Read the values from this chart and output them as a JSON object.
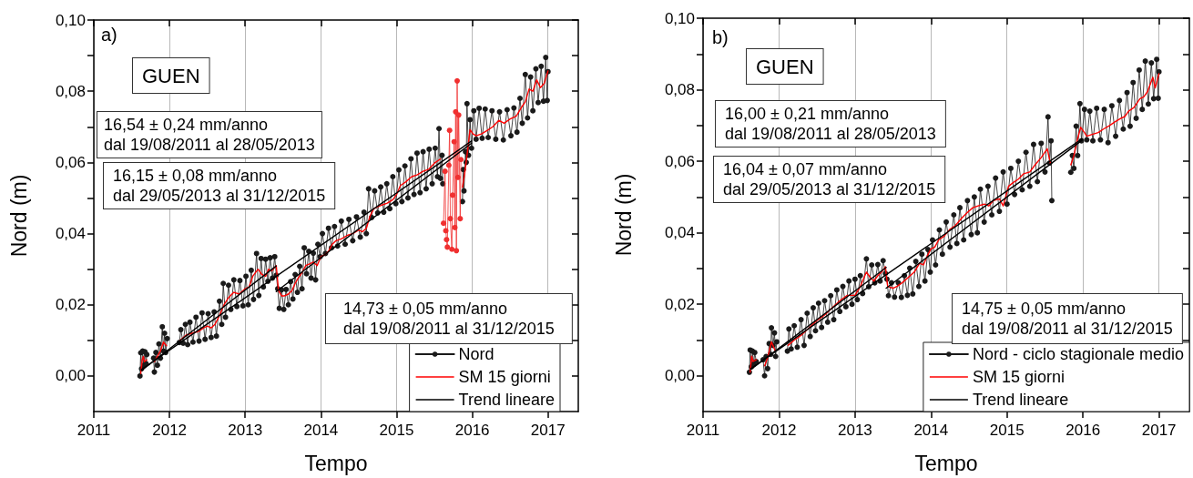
{
  "chart_data": [
    {
      "type": "line",
      "xlabel": "Tempo",
      "ylabel": "Nord (m)",
      "xlim": [
        2011,
        2017.4
      ],
      "xticks": [
        2011,
        2012,
        2013,
        2014,
        2015,
        2016,
        2017
      ],
      "ylim": [
        -0.01,
        0.1
      ],
      "yticks": [
        {
          "value": 0,
          "label": "0,00"
        },
        {
          "value": 0.01,
          "label": null
        },
        {
          "value": 0.02,
          "label": "0,02"
        },
        {
          "value": 0.03,
          "label": null
        },
        {
          "value": 0.04,
          "label": "0,04"
        },
        {
          "value": 0.05,
          "label": null
        },
        {
          "value": 0.06,
          "label": "0,06"
        },
        {
          "value": 0.07,
          "label": null
        },
        {
          "value": 0.08,
          "label": "0,08"
        },
        {
          "value": 0.09,
          "label": null
        },
        {
          "value": 0.1,
          "label": "0,10"
        }
      ],
      "grid": "x",
      "legend": "bottom right",
      "marker": "none",
      "annotations": [
        "a)",
        "GUEN",
        "16,54 ± 0,24 mm/anno\ndal 19/08/2011 al 28/05/2013",
        "16,15 ± 0,08 mm/anno\ndal 29/05/2013 al 31/12/2015",
        "14,73 ± 0,05 mm/anno\ndal 19/08/2011 al 31/12/2015"
      ],
      "series": [
        {
          "name": "Nord",
          "color": "#1a1a1a",
          "marker": "circle",
          "x": [
            2011.61,
            2011.62,
            2011.63,
            2011.645,
            2011.66,
            2011.675,
            2011.69,
            2011.7,
            2011.74,
            2011.79,
            2011.8,
            2011.82,
            2011.84,
            2011.86,
            2011.88,
            2011.905,
            2011.92,
            2011.935,
            2011.95,
            2011.97,
            2012.05,
            2012.13,
            2012.15,
            2012.18,
            2012.21,
            2012.24,
            2012.27,
            2012.31,
            2012.35,
            2012.39,
            2012.43,
            2012.47,
            2012.51,
            2012.55,
            2012.59,
            2012.62,
            2012.66,
            2012.69,
            2012.71,
            2012.74,
            2012.78,
            2012.81,
            2012.85,
            2012.89,
            2012.93,
            2012.97,
            2013.01,
            2013.04,
            2013.08,
            2013.11,
            2013.15,
            2013.18,
            2013.21,
            2013.24,
            2013.27,
            2013.3,
            2013.33,
            2013.36,
            2013.39,
            2013.41,
            2013.43,
            2013.45,
            2013.48,
            2013.51,
            2013.54,
            2013.57,
            2013.6,
            2013.63,
            2013.66,
            2013.69,
            2013.72,
            2013.75,
            2013.78,
            2013.81,
            2013.84,
            2013.87,
            2013.9,
            2013.93,
            2013.96,
            2013.99,
            2014.02,
            2014.06,
            2014.1,
            2014.14,
            2014.18,
            2014.22,
            2014.27,
            2014.32,
            2014.37,
            2014.42,
            2014.47,
            2014.52,
            2014.57,
            2014.6,
            2014.63,
            2014.67,
            2014.71,
            2014.75,
            2014.79,
            2014.83,
            2014.87,
            2014.91,
            2014.95,
            2014.99,
            2015.03,
            2015.07,
            2015.11,
            2015.15,
            2015.19,
            2015.23,
            2015.27,
            2015.31,
            2015.35,
            2015.39,
            2015.43,
            2015.47,
            2015.51,
            2015.54,
            2015.56,
            2015.58,
            2015.6,
            2015.61,
            2015.73,
            2015.87,
            2015.88,
            2015.89,
            2015.91,
            2015.92,
            2015.93,
            2015.95,
            2015.97,
            2015.99,
            2016.02,
            2016.05,
            2016.09,
            2016.13,
            2016.17,
            2016.21,
            2016.26,
            2016.31,
            2016.36,
            2016.41,
            2016.46,
            2016.51,
            2016.55,
            2016.59,
            2016.63,
            2016.66,
            2016.7,
            2016.73,
            2016.77,
            2016.8,
            2016.84,
            2016.87,
            2016.91,
            2016.94,
            2016.97,
            2016.99,
            2017
          ],
          "values": [
            0,
            0.0065,
            0.002,
            0.007,
            0.003,
            0.0068,
            0.0035,
            0.006,
            null,
            0.005,
            0.0011,
            0.0066,
            0.003,
            0.009,
            0.005,
            0.0138,
            0.007,
            0.012,
            0.0066,
            0.0105,
            null,
            0.0094,
            0.013,
            0.0092,
            0.0145,
            0.0088,
            0.0151,
            0.0095,
            0.0165,
            0.0098,
            0.0177,
            0.0103,
            0.0175,
            0.0108,
            0.018,
            0.0112,
            0.021,
            0.0145,
            0.026,
            0.0165,
            0.0255,
            0.0187,
            0.027,
            0.0195,
            0.0268,
            0.0197,
            0.028,
            0.02,
            0.0297,
            0.0215,
            0.0344,
            0.0226,
            0.033,
            0.025,
            0.0328,
            0.0266,
            0.0332,
            0.0275,
            0.0335,
            0.0283,
            0.0245,
            0.019,
            0.0242,
            0.0187,
            0.0243,
            0.02,
            0.0265,
            0.0216,
            0.0285,
            0.0235,
            0.0308,
            0.0245,
            0.036,
            0.0287,
            0.035,
            0.0275,
            0.0345,
            0.027,
            0.037,
            0.0335,
            0.04,
            0.0344,
            0.0415,
            0.036,
            0.042,
            0.0365,
            0.0435,
            0.037,
            0.044,
            0.038,
            0.0447,
            0.039,
            0.046,
            0.04,
            0.0526,
            0.0445,
            0.052,
            0.0458,
            0.0531,
            0.046,
            0.054,
            0.047,
            0.056,
            0.0484,
            0.0579,
            0.049,
            0.059,
            0.05,
            0.061,
            0.051,
            0.0626,
            0.0515,
            0.063,
            0.0526,
            0.0637,
            0.054,
            0.064,
            0.056,
            0.0695,
            0.0555,
            0.062,
            0.054,
            null,
            0.049,
            0.058,
            0.052,
            0.063,
            0.06,
            0.0765,
            0.062,
            0.072,
            0.064,
            0.0745,
            0.0665,
            0.0752,
            0.0668,
            0.075,
            0.067,
            0.0745,
            0.0665,
            0.0742,
            0.0663,
            0.0748,
            0.0675,
            0.0753,
            0.0685,
            0.078,
            0.071,
            0.0847,
            0.0725,
            0.084,
            0.0745,
            0.0863,
            0.0768,
            0.087,
            0.0772,
            0.0895,
            0.0774,
            0.0855
          ]
        },
        {
          "color": "#f03030",
          "marker": "circle",
          "x": [
            2015.62,
            2015.64,
            2015.65,
            2015.66,
            2015.67,
            2015.69,
            2015.7,
            2015.71,
            2015.73,
            2015.74,
            2015.76,
            2015.77,
            2015.78,
            2015.79,
            2015.8,
            2015.81,
            2015.82,
            2015.84,
            2015.85
          ],
          "values": [
            0.0429,
            0.0575,
            0.0408,
            0.0383,
            0.0362,
            0.0592,
            0.069,
            0.0442,
            0.0356,
            0.0508,
            0.0658,
            0.0417,
            0.0742,
            0.0352,
            0.0829,
            0.0558,
            0.0733,
            0.0442,
            0.0608
          ]
        },
        {
          "name": "SM 15 giorni",
          "color": "#ff0000",
          "x": [
            2011.62,
            2011.64,
            2011.655,
            2011.67,
            2011.7,
            2011.75,
            2011.8,
            2011.84,
            2011.88,
            2011.92,
            2011.96,
            2012.05,
            2012.14,
            2012.22,
            2012.3,
            2012.38,
            2012.45,
            2012.5,
            2012.55,
            2012.6,
            2012.65,
            2012.72,
            2012.78,
            2012.85,
            2012.92,
            2013,
            2013.05,
            2013.1,
            2013.17,
            2013.22,
            2013.27,
            2013.31,
            2013.35,
            2013.41,
            2013.44,
            2013.48,
            2013.52,
            2013.57,
            2013.62,
            2013.66,
            2013.7,
            2013.75,
            2013.8,
            2013.85,
            2013.9,
            2013.95,
            2014,
            2014.05,
            2014.1,
            2014.15,
            2014.2,
            2014.27,
            2014.35,
            2014.42,
            2014.5,
            2014.55,
            2014.6,
            2014.65,
            2014.7,
            2014.75,
            2014.8,
            2014.87,
            2014.95,
            2015,
            2015.05,
            2015.12,
            2015.2,
            2015.27,
            2015.35,
            2015.42,
            2015.5,
            2015.58,
            2015.7,
            2015.87,
            2015.9,
            2015.93,
            2015.97,
            2016.01,
            2016.05,
            2016.12,
            2016.2,
            2016.27,
            2016.35,
            2016.42,
            2016.5,
            2016.58,
            2016.65,
            2016.7,
            2016.75,
            2016.8,
            2016.85,
            2016.9,
            2016.95,
            2017
          ],
          "values": [
            0.0007,
            0.0045,
            0.0055,
            0.004,
            0.0045,
            null,
            0.004,
            0.0055,
            0.007,
            0.0095,
            0.0085,
            null,
            0.01,
            0.0115,
            0.012,
            0.0125,
            0.0135,
            0.014,
            0.0135,
            0.0145,
            0.0165,
            0.02,
            0.022,
            0.0235,
            0.023,
            0.0245,
            0.025,
            0.028,
            0.03,
            0.0285,
            0.028,
            0.03,
            0.0295,
            0.031,
            0.024,
            0.0225,
            0.0225,
            0.023,
            0.024,
            0.026,
            0.0275,
            0.029,
            0.031,
            0.0315,
            0.032,
            0.031,
            0.0335,
            0.034,
            0.035,
            0.037,
            0.038,
            0.0385,
            0.0395,
            0.04,
            0.041,
            0.0405,
            0.0415,
            0.045,
            0.047,
            0.0475,
            0.048,
            0.0485,
            0.0495,
            0.051,
            0.0535,
            0.0545,
            0.056,
            0.0565,
            0.0575,
            0.058,
            0.0598,
            0.061,
            null,
            0.053,
            0.057,
            0.062,
            0.0692,
            0.068,
            0.0675,
            0.068,
            0.069,
            0.07,
            0.0718,
            0.071,
            0.0722,
            0.073,
            0.0755,
            0.077,
            0.0806,
            0.08,
            0.0832,
            0.081,
            0.0822,
            0.0857
          ]
        },
        {
          "name": "Trend lineare",
          "color": "#000000",
          "x": [
            2011.63,
            2013.41
          ],
          "values": [
            0.0015,
            0.0309
          ]
        },
        {
          "color": "#000000",
          "x": [
            2013.41,
            2015.99
          ],
          "values": [
            0.0237,
            0.0654
          ]
        },
        {
          "color": "#000000",
          "x": [
            2011.63,
            2015.99
          ],
          "values": [
            0.0018,
            0.066
          ]
        }
      ]
    },
    {
      "type": "line",
      "xlabel": "Tempo",
      "ylabel": "Nord (m)",
      "xlim": [
        2011,
        2017.4
      ],
      "xticks": [
        2011,
        2012,
        2013,
        2014,
        2015,
        2016,
        2017
      ],
      "ylim": [
        -0.01,
        0.1
      ],
      "yticks": [
        {
          "value": 0,
          "label": "0,00"
        },
        {
          "value": 0.01,
          "label": null
        },
        {
          "value": 0.02,
          "label": "0,02"
        },
        {
          "value": 0.03,
          "label": null
        },
        {
          "value": 0.04,
          "label": "0,04"
        },
        {
          "value": 0.05,
          "label": null
        },
        {
          "value": 0.06,
          "label": "0,06"
        },
        {
          "value": 0.07,
          "label": null
        },
        {
          "value": 0.08,
          "label": "0,08"
        },
        {
          "value": 0.09,
          "label": null
        },
        {
          "value": 0.1,
          "label": "0,10"
        }
      ],
      "grid": "x",
      "legend": "bottom right",
      "marker": "none",
      "annotations": [
        "b)",
        "GUEN",
        "16,00 ± 0,21 mm/anno\ndal 19/08/2011 al 28/05/2013",
        "16,04 ± 0,07 mm/anno\ndal 29/05/2013 al 31/12/2015",
        "14,75 ± 0,05 mm/anno\ndal 19/08/2011 al 31/12/2015"
      ],
      "series": [
        {
          "name": "Nord - ciclo stagionale medio",
          "color": "#1a1a1a",
          "marker": "circle",
          "x": [
            2011.61,
            2011.62,
            2011.635,
            2011.65,
            2011.665,
            2011.68,
            2011.7,
            2011.74,
            2011.79,
            2011.81,
            2011.83,
            2011.85,
            2011.87,
            2011.89,
            2011.9,
            2011.92,
            2011.94,
            2011.955,
            2011.97,
            2012.04,
            2012.11,
            2012.13,
            2012.16,
            2012.2,
            2012.24,
            2012.29,
            2012.33,
            2012.37,
            2012.41,
            2012.45,
            2012.48,
            2012.52,
            2012.56,
            2012.6,
            2012.64,
            2012.68,
            2012.72,
            2012.76,
            2012.8,
            2012.84,
            2012.88,
            2012.92,
            2012.96,
            2013,
            2013.03,
            2013.07,
            2013.1,
            2013.15,
            2013.18,
            2013.22,
            2013.26,
            2013.3,
            2013.33,
            2013.37,
            2013.4,
            2013.42,
            2013.44,
            2013.48,
            2013.52,
            2013.57,
            2013.61,
            2013.65,
            2013.69,
            2013.72,
            2013.76,
            2013.8,
            2013.84,
            2013.88,
            2013.92,
            2013.96,
            2013.99,
            2014.02,
            2014.06,
            2014.11,
            2014.15,
            2014.2,
            2014.25,
            2014.3,
            2014.34,
            2014.38,
            2014.43,
            2014.48,
            2014.53,
            2014.57,
            2014.61,
            2014.65,
            2014.7,
            2014.75,
            2014.8,
            2014.85,
            2014.9,
            2014.95,
            2015,
            2015.05,
            2015.1,
            2015.15,
            2015.2,
            2015.25,
            2015.3,
            2015.35,
            2015.4,
            2015.45,
            2015.5,
            2015.54,
            2015.56,
            2015.58,
            2015.59,
            2015.7,
            2015.84,
            2015.86,
            2015.88,
            2015.91,
            2015.93,
            2015.96,
            2015.98,
            2016.02,
            2016.05,
            2016.09,
            2016.13,
            2016.18,
            2016.23,
            2016.28,
            2016.33,
            2016.38,
            2016.43,
            2016.48,
            2016.53,
            2016.58,
            2016.62,
            2016.66,
            2016.7,
            2016.74,
            2016.78,
            2016.82,
            2016.86,
            2016.9,
            2016.93,
            2016.97,
            2016.99,
            2017
          ],
          "values": [
            0.001,
            0.0072,
            0.0025,
            0.0069,
            0.0033,
            0.0065,
            0.004,
            null,
            0.0045,
            0,
            0.0054,
            0.002,
            0.009,
            0.006,
            0.0134,
            0.0085,
            0.012,
            0.0054,
            0.0095,
            null,
            0.0069,
            0.0131,
            0.0075,
            0.014,
            0.008,
            0.0157,
            0.0085,
            0.0175,
            0.011,
            0.019,
            0.0126,
            0.0203,
            0.0135,
            0.021,
            0.015,
            0.0224,
            0.0157,
            0.024,
            0.018,
            0.025,
            0.0193,
            0.0265,
            0.02,
            0.027,
            0.0213,
            0.028,
            0.023,
            0.0327,
            0.0249,
            0.031,
            0.026,
            0.0311,
            0.0265,
            0.0322,
            0.0286,
            0.027,
            0.0224,
            0.026,
            0.022,
            0.026,
            0.0219,
            0.028,
            0.0225,
            0.0301,
            0.0229,
            0.032,
            0.025,
            0.034,
            0.0265,
            0.0353,
            0.029,
            0.038,
            0.031,
            0.0408,
            0.034,
            0.043,
            0.036,
            0.045,
            0.037,
            0.047,
            0.038,
            0.049,
            0.0395,
            0.05,
            0.04,
            0.0522,
            0.043,
            0.053,
            0.045,
            0.0553,
            0.046,
            0.057,
            0.048,
            0.058,
            0.0507,
            0.06,
            0.052,
            0.0625,
            0.053,
            0.0647,
            0.0543,
            0.065,
            0.057,
            0.0724,
            0.0595,
            0.0657,
            0.049,
            null,
            0.0569,
            0.0616,
            0.058,
            0.0698,
            0.0616,
            0.0761,
            0.0657,
            0.0745,
            0.066,
            0.074,
            0.0657,
            0.0748,
            0.066,
            0.0745,
            0.0652,
            0.0755,
            0.067,
            0.077,
            0.069,
            0.0792,
            0.0698,
            0.082,
            0.072,
            0.0855,
            0.0745,
            0.088,
            0.076,
            0.0875,
            0.0775,
            0.0885,
            0.0776,
            0.085
          ]
        },
        {
          "name": "SM 15 giorni",
          "color": "#ff0000",
          "x": [
            2011.62,
            2011.64,
            2011.66,
            2011.7,
            2011.75,
            2011.81,
            2011.85,
            2011.9,
            2011.95,
            2012.04,
            2012.12,
            2012.2,
            2012.3,
            2012.4,
            2012.5,
            2012.6,
            2012.7,
            2012.8,
            2012.9,
            2013,
            2013.07,
            2013.15,
            2013.2,
            2013.25,
            2013.3,
            2013.35,
            2013.4,
            2013.43,
            2013.5,
            2013.55,
            2013.62,
            2013.7,
            2013.78,
            2013.85,
            2013.9,
            2013.95,
            2014,
            2014.05,
            2014.1,
            2014.17,
            2014.25,
            2014.32,
            2014.4,
            2014.47,
            2014.55,
            2014.62,
            2014.7,
            2014.76,
            2014.82,
            2014.9,
            2014.95,
            2015.02,
            2015.08,
            2015.15,
            2015.22,
            2015.3,
            2015.37,
            2015.45,
            2015.53,
            2015.57,
            2015.7,
            2015.84,
            2015.88,
            2015.92,
            2015.97,
            2016.02,
            2016.05,
            2016.12,
            2016.2,
            2016.27,
            2016.35,
            2016.42,
            2016.5,
            2016.55,
            2016.6,
            2016.67,
            2016.75,
            2016.8,
            2016.85,
            2016.92,
            2016.95,
            2017
          ],
          "values": [
            0.001,
            0.0055,
            0.004,
            0.0045,
            null,
            0.0028,
            0.005,
            0.0095,
            0.007,
            null,
            0.0085,
            0.01,
            0.0115,
            0.0135,
            0.0155,
            0.017,
            0.019,
            0.021,
            0.0225,
            0.0225,
            0.025,
            0.029,
            0.0275,
            0.0265,
            0.028,
            0.029,
            0.0305,
            0.025,
            0.0245,
            0.025,
            0.026,
            0.0275,
            0.029,
            0.0315,
            0.031,
            0.0335,
            0.0355,
            0.036,
            0.038,
            0.039,
            0.041,
            0.042,
            0.044,
            0.0455,
            0.047,
            0.0475,
            0.048,
            0.0475,
            0.049,
            0.0495,
            0.0475,
            0.053,
            0.054,
            0.055,
            0.0565,
            0.057,
            0.059,
            0.061,
            0.0635,
            0.0595,
            null,
            0.059,
            0.0615,
            0.0655,
            0.0695,
            0.068,
            0.067,
            0.0675,
            0.068,
            0.069,
            0.07,
            0.071,
            0.072,
            0.0725,
            0.074,
            0.075,
            0.0775,
            0.078,
            0.0795,
            0.0835,
            0.0805,
            0.0845
          ]
        },
        {
          "name": "Trend lineare",
          "color": "#000000",
          "x": [
            2011.63,
            2013.41
          ],
          "values": [
            0.0018,
            0.0303
          ]
        },
        {
          "color": "#000000",
          "x": [
            2013.41,
            2015.99
          ],
          "values": [
            0.0245,
            0.0659
          ]
        },
        {
          "color": "#000000",
          "x": [
            2011.63,
            2015.99
          ],
          "values": [
            0.002,
            0.0663
          ]
        }
      ]
    }
  ]
}
